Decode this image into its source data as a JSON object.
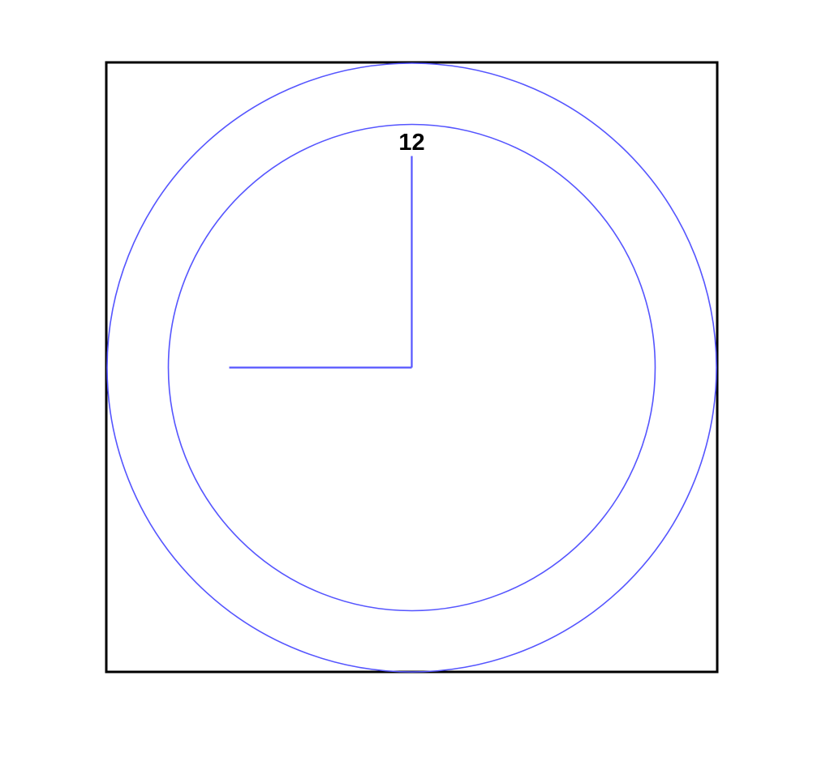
{
  "clock": {
    "hour_label": "12",
    "time_shown": {
      "hour": 9,
      "minute": 0
    },
    "colors": {
      "frame": "#000000",
      "circles": "#5555ff",
      "hands": "#5555ff",
      "label": "#000000",
      "background": "#ffffff"
    }
  }
}
